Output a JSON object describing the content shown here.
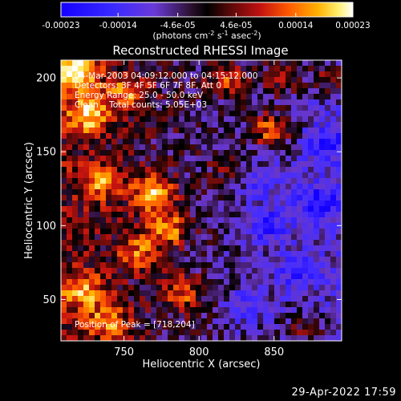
{
  "chart_data": {
    "type": "heatmap",
    "title": "Reconstructed RHESSI Image",
    "xlabel": "Heliocentric X (arcsec)",
    "ylabel": "Heliocentric Y (arcsec)",
    "xlim": [
      708,
      895
    ],
    "ylim": [
      22,
      212
    ],
    "x_ticks": [
      750,
      800,
      850
    ],
    "y_ticks": [
      50,
      100,
      150,
      200
    ],
    "colorbar": {
      "range": [
        -0.00023,
        0.00023
      ],
      "ticks": [
        -0.00023,
        -0.00014,
        -4.6e-05,
        4.6e-05,
        0.00014,
        0.00023
      ],
      "tick_labels": [
        "-0.00023",
        "-0.00014",
        "-4.6e-05",
        "4.6e-05",
        "0.00014",
        "0.00023"
      ],
      "unit": "(photons cm",
      "unit_sup1": "-2",
      "unit_mid1": " s",
      "unit_sup2": "-1",
      "unit_mid2": " asec",
      "unit_sup3": "-2",
      "unit_end": ")"
    },
    "annotations": [
      "04-Mar-2003 04:09:12.000 to 04:15:12.000",
      "Detectors: 3F 4F 5F 6F 7F 8F, Att 0",
      "Energy Range: 25.0 - 50.0 keV",
      "Clean    Total counts: 5.05E+03"
    ],
    "peak_label": "Position of Peak = [718,204]",
    "bright_regions": [
      {
        "x": 718,
        "y": 204,
        "level": 1.0
      },
      {
        "x": 725,
        "y": 175,
        "level": 0.8
      },
      {
        "x": 752,
        "y": 190,
        "level": 0.65
      },
      {
        "x": 770,
        "y": 122,
        "level": 0.85
      },
      {
        "x": 780,
        "y": 98,
        "level": 0.7
      },
      {
        "x": 760,
        "y": 82,
        "level": 0.55
      },
      {
        "x": 735,
        "y": 130,
        "level": 0.6
      },
      {
        "x": 790,
        "y": 55,
        "level": 0.55
      },
      {
        "x": 722,
        "y": 55,
        "level": 0.65
      },
      {
        "x": 740,
        "y": 35,
        "level": 0.6
      },
      {
        "x": 820,
        "y": 198,
        "level": 0.55
      },
      {
        "x": 848,
        "y": 165,
        "level": 0.75
      },
      {
        "x": 855,
        "y": 200,
        "level": 0.55
      },
      {
        "x": 888,
        "y": 200,
        "level": 0.5
      },
      {
        "x": 872,
        "y": 30,
        "level": 0.4
      },
      {
        "x": 820,
        "y": 140,
        "level": 0.3
      }
    ],
    "dark_regions": [
      {
        "x": 845,
        "y": 100,
        "level": -0.55
      },
      {
        "x": 880,
        "y": 115,
        "level": -0.6
      },
      {
        "x": 865,
        "y": 70,
        "level": -0.45
      },
      {
        "x": 830,
        "y": 45,
        "level": -0.4
      },
      {
        "x": 885,
        "y": 155,
        "level": -0.45
      },
      {
        "x": 840,
        "y": 130,
        "level": -0.35
      }
    ]
  },
  "footer": {
    "timestamp": "29-Apr-2022 17:59"
  }
}
